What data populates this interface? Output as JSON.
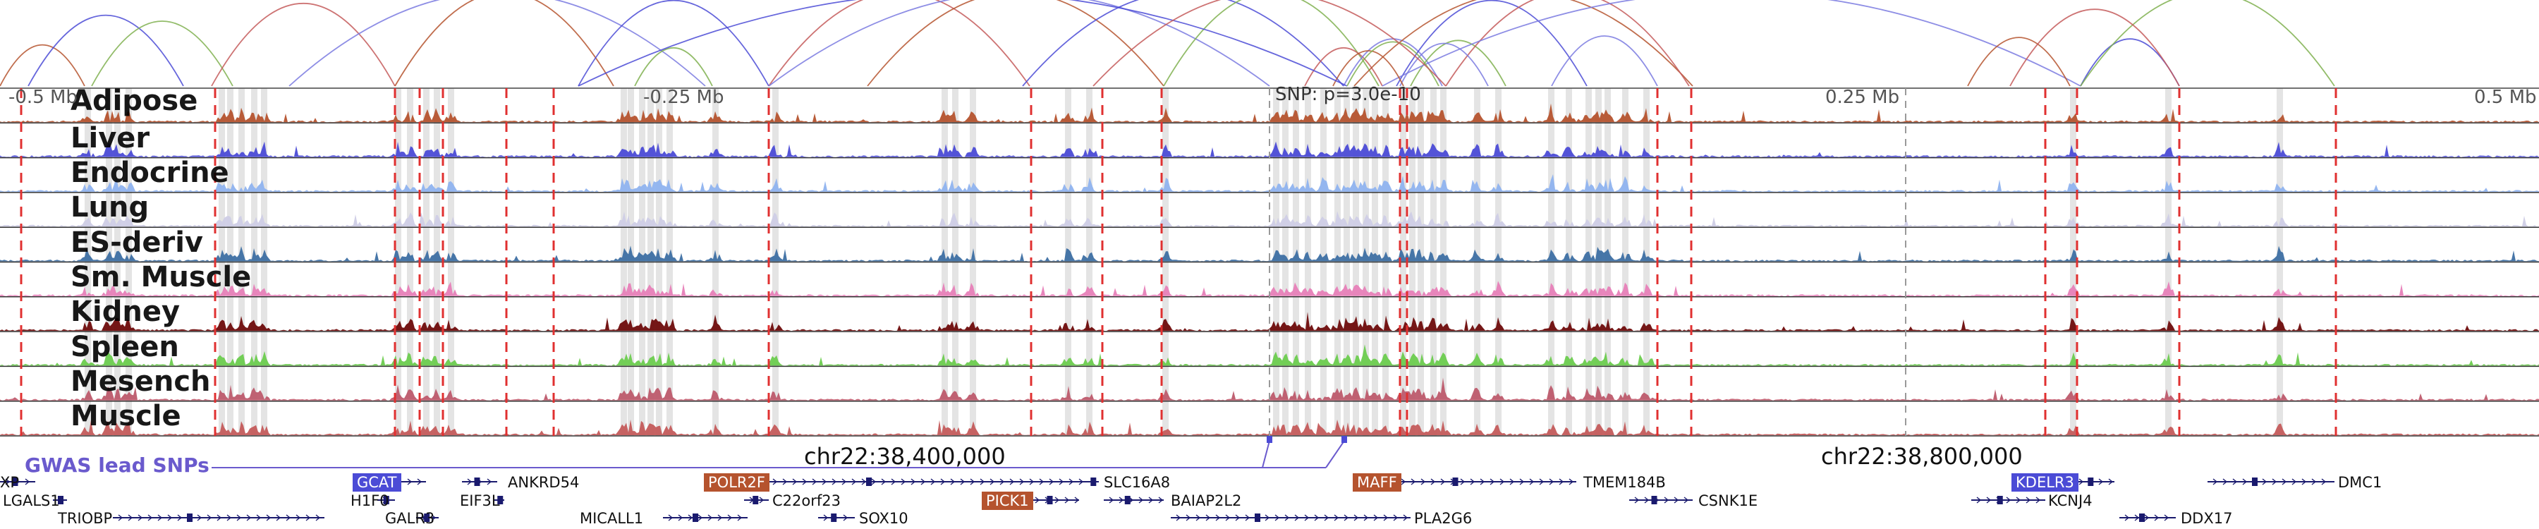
{
  "axis": {
    "ticks": [
      "-0.5 Mb",
      "-0.25 Mb",
      "0.25 Mb",
      "0.5 Mb"
    ],
    "snp_label": "SNP: p=3.0e-10",
    "coords": [
      "chr22:38,400,000",
      "chr22:38,800,000"
    ],
    "gwas_label": "GWAS lead SNPs"
  },
  "tracks": [
    {
      "name": "Adipose",
      "color": "#b5532e"
    },
    {
      "name": "Liver",
      "color": "#4b4bd6"
    },
    {
      "name": "Endocrine",
      "color": "#8fb3ef"
    },
    {
      "name": "Lung",
      "color": "#cfcde6"
    },
    {
      "name": "ES-deriv",
      "color": "#3d6fa3"
    },
    {
      "name": "Sm. Muscle",
      "color": "#e77fb8"
    },
    {
      "name": "Kidney",
      "color": "#6e0b0b"
    },
    {
      "name": "Spleen",
      "color": "#6ccc4e"
    },
    {
      "name": "Mesench",
      "color": "#bd5a6c"
    },
    {
      "name": "Muscle",
      "color": "#c45b5b"
    }
  ],
  "genes": [
    {
      "name": "XP",
      "boxed": false
    },
    {
      "name": "GCAT",
      "boxed": true,
      "color": "#4b4bd6"
    },
    {
      "name": "ANKRD54",
      "boxed": false
    },
    {
      "name": "POLR2F",
      "boxed": true,
      "color": "#b5532e"
    },
    {
      "name": "SLC16A8",
      "boxed": false
    },
    {
      "name": "MAFF",
      "boxed": true,
      "color": "#b5532e"
    },
    {
      "name": "TMEM184B",
      "boxed": false
    },
    {
      "name": "KDELR3",
      "boxed": true,
      "color": "#4b4bd6"
    },
    {
      "name": "DMC1",
      "boxed": false
    },
    {
      "name": "LGALS1",
      "boxed": false
    },
    {
      "name": "H1F0",
      "boxed": false
    },
    {
      "name": "EIF3L",
      "boxed": false
    },
    {
      "name": "C22orf23",
      "boxed": false
    },
    {
      "name": "PICK1",
      "boxed": true,
      "color": "#b5532e"
    },
    {
      "name": "BAIAP2L2",
      "boxed": false
    },
    {
      "name": "CSNK1E",
      "boxed": false
    },
    {
      "name": "KCNJ4",
      "boxed": false
    },
    {
      "name": "TRIOBP",
      "boxed": false
    },
    {
      "name": "GALR3",
      "boxed": false
    },
    {
      "name": "MICALL1",
      "boxed": false
    },
    {
      "name": "SOX10",
      "boxed": false
    },
    {
      "name": "PLA2G6",
      "boxed": false
    },
    {
      "name": "DDX17",
      "boxed": false
    }
  ]
}
